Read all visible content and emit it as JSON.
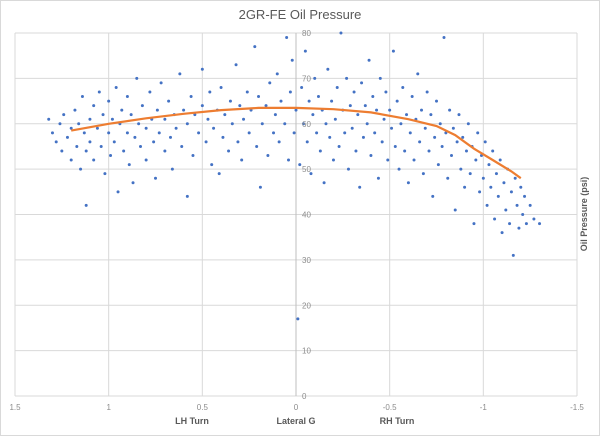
{
  "chart_data": {
    "type": "scatter",
    "title": "2GR-FE Oil Pressure",
    "xlabel": "Lateral G",
    "ylabel": "Oil Pressure (psi)",
    "x_annotations": {
      "left": "LH Turn",
      "right": "RH Turn"
    },
    "xlim": [
      1.5,
      -1.5
    ],
    "x_reversed": true,
    "ylim": [
      0,
      80
    ],
    "x_ticks": [
      "1.5",
      "1",
      "0.5",
      "0",
      "-0.5",
      "-1",
      "-1.5"
    ],
    "y_ticks": [
      "0",
      "10",
      "20",
      "30",
      "40",
      "50",
      "60",
      "70",
      "80"
    ],
    "grid": true,
    "legend": "none",
    "colors": {
      "points": "#4472c4",
      "trend": "#ed7d31",
      "grid": "#d9d9d9",
      "text": "#595959"
    },
    "points": [
      [
        1.32,
        61
      ],
      [
        1.3,
        58
      ],
      [
        1.28,
        56
      ],
      [
        1.26,
        60
      ],
      [
        1.25,
        54
      ],
      [
        1.24,
        62
      ],
      [
        1.22,
        57
      ],
      [
        1.2,
        59
      ],
      [
        1.2,
        52
      ],
      [
        1.18,
        63
      ],
      [
        1.17,
        55
      ],
      [
        1.16,
        60
      ],
      [
        1.15,
        50
      ],
      [
        1.14,
        66
      ],
      [
        1.13,
        58
      ],
      [
        1.12,
        42
      ],
      [
        1.12,
        54
      ],
      [
        1.1,
        61
      ],
      [
        1.1,
        56
      ],
      [
        1.08,
        64
      ],
      [
        1.08,
        52
      ],
      [
        1.06,
        59
      ],
      [
        1.05,
        67
      ],
      [
        1.04,
        55
      ],
      [
        1.03,
        62
      ],
      [
        1.02,
        49
      ],
      [
        1.0,
        58
      ],
      [
        1.0,
        65
      ],
      [
        0.99,
        53
      ],
      [
        0.98,
        61
      ],
      [
        0.97,
        56
      ],
      [
        0.96,
        68
      ],
      [
        0.95,
        45
      ],
      [
        0.94,
        60
      ],
      [
        0.93,
        63
      ],
      [
        0.92,
        54
      ],
      [
        0.9,
        58
      ],
      [
        0.9,
        66
      ],
      [
        0.89,
        51
      ],
      [
        0.88,
        62
      ],
      [
        0.87,
        47
      ],
      [
        0.86,
        57
      ],
      [
        0.85,
        70
      ],
      [
        0.84,
        60
      ],
      [
        0.83,
        55
      ],
      [
        0.82,
        64
      ],
      [
        0.8,
        59
      ],
      [
        0.8,
        52
      ],
      [
        0.78,
        67
      ],
      [
        0.77,
        61
      ],
      [
        0.76,
        56
      ],
      [
        0.75,
        48
      ],
      [
        0.74,
        63
      ],
      [
        0.73,
        58
      ],
      [
        0.72,
        69
      ],
      [
        0.7,
        54
      ],
      [
        0.7,
        61
      ],
      [
        0.68,
        65
      ],
      [
        0.67,
        57
      ],
      [
        0.66,
        50
      ],
      [
        0.65,
        62
      ],
      [
        0.64,
        59
      ],
      [
        0.62,
        71
      ],
      [
        0.61,
        55
      ],
      [
        0.6,
        63
      ],
      [
        0.58,
        44
      ],
      [
        0.58,
        60
      ],
      [
        0.56,
        66
      ],
      [
        0.55,
        53
      ],
      [
        0.54,
        62
      ],
      [
        0.52,
        58
      ],
      [
        0.5,
        72
      ],
      [
        0.5,
        64
      ],
      [
        0.48,
        56
      ],
      [
        0.47,
        61
      ],
      [
        0.46,
        67
      ],
      [
        0.45,
        51
      ],
      [
        0.44,
        59
      ],
      [
        0.42,
        63
      ],
      [
        0.41,
        49
      ],
      [
        0.4,
        68
      ],
      [
        0.39,
        57
      ],
      [
        0.38,
        62
      ],
      [
        0.36,
        54
      ],
      [
        0.35,
        65
      ],
      [
        0.34,
        60
      ],
      [
        0.32,
        73
      ],
      [
        0.31,
        56
      ],
      [
        0.3,
        64
      ],
      [
        0.29,
        52
      ],
      [
        0.28,
        61
      ],
      [
        0.26,
        67
      ],
      [
        0.25,
        58
      ],
      [
        0.24,
        63
      ],
      [
        0.22,
        77
      ],
      [
        0.21,
        55
      ],
      [
        0.2,
        66
      ],
      [
        0.19,
        46
      ],
      [
        0.18,
        60
      ],
      [
        0.16,
        64
      ],
      [
        0.15,
        53
      ],
      [
        0.14,
        69
      ],
      [
        0.12,
        58
      ],
      [
        0.11,
        62
      ],
      [
        0.1,
        71
      ],
      [
        0.09,
        56
      ],
      [
        0.08,
        65
      ],
      [
        0.06,
        60
      ],
      [
        0.05,
        79
      ],
      [
        0.04,
        52
      ],
      [
        0.03,
        67
      ],
      [
        0.02,
        74
      ],
      [
        0.01,
        58
      ],
      [
        0.0,
        63
      ],
      [
        -0.01,
        17
      ],
      [
        -0.02,
        51
      ],
      [
        -0.03,
        68
      ],
      [
        -0.04,
        60
      ],
      [
        -0.05,
        76
      ],
      [
        -0.06,
        56
      ],
      [
        -0.07,
        65
      ],
      [
        -0.08,
        49
      ],
      [
        -0.09,
        62
      ],
      [
        -0.1,
        70
      ],
      [
        -0.11,
        58
      ],
      [
        -0.12,
        66
      ],
      [
        -0.13,
        54
      ],
      [
        -0.14,
        63
      ],
      [
        -0.15,
        47
      ],
      [
        -0.16,
        60
      ],
      [
        -0.17,
        72
      ],
      [
        -0.18,
        57
      ],
      [
        -0.19,
        65
      ],
      [
        -0.2,
        52
      ],
      [
        -0.21,
        61
      ],
      [
        -0.22,
        68
      ],
      [
        -0.23,
        55
      ],
      [
        -0.24,
        80
      ],
      [
        -0.25,
        63
      ],
      [
        -0.26,
        58
      ],
      [
        -0.27,
        70
      ],
      [
        -0.28,
        50
      ],
      [
        -0.29,
        64
      ],
      [
        -0.3,
        59
      ],
      [
        -0.31,
        67
      ],
      [
        -0.32,
        54
      ],
      [
        -0.33,
        62
      ],
      [
        -0.34,
        46
      ],
      [
        -0.35,
        69
      ],
      [
        -0.36,
        57
      ],
      [
        -0.37,
        64
      ],
      [
        -0.38,
        60
      ],
      [
        -0.39,
        74
      ],
      [
        -0.4,
        53
      ],
      [
        -0.41,
        66
      ],
      [
        -0.42,
        58
      ],
      [
        -0.43,
        63
      ],
      [
        -0.44,
        48
      ],
      [
        -0.45,
        70
      ],
      [
        -0.46,
        56
      ],
      [
        -0.47,
        61
      ],
      [
        -0.48,
        67
      ],
      [
        -0.49,
        52
      ],
      [
        -0.5,
        63
      ],
      [
        -0.51,
        59
      ],
      [
        -0.52,
        76
      ],
      [
        -0.53,
        55
      ],
      [
        -0.54,
        65
      ],
      [
        -0.55,
        50
      ],
      [
        -0.56,
        60
      ],
      [
        -0.57,
        68
      ],
      [
        -0.58,
        54
      ],
      [
        -0.59,
        62
      ],
      [
        -0.6,
        47
      ],
      [
        -0.61,
        58
      ],
      [
        -0.62,
        66
      ],
      [
        -0.63,
        52
      ],
      [
        -0.64,
        61
      ],
      [
        -0.65,
        71
      ],
      [
        -0.66,
        56
      ],
      [
        -0.67,
        63
      ],
      [
        -0.68,
        49
      ],
      [
        -0.69,
        59
      ],
      [
        -0.7,
        67
      ],
      [
        -0.71,
        54
      ],
      [
        -0.72,
        62
      ],
      [
        -0.73,
        44
      ],
      [
        -0.74,
        57
      ],
      [
        -0.75,
        65
      ],
      [
        -0.76,
        51
      ],
      [
        -0.77,
        60
      ],
      [
        -0.78,
        55
      ],
      [
        -0.79,
        79
      ],
      [
        -0.8,
        58
      ],
      [
        -0.81,
        48
      ],
      [
        -0.82,
        63
      ],
      [
        -0.83,
        53
      ],
      [
        -0.84,
        59
      ],
      [
        -0.85,
        41
      ],
      [
        -0.86,
        56
      ],
      [
        -0.87,
        62
      ],
      [
        -0.88,
        50
      ],
      [
        -0.89,
        57
      ],
      [
        -0.9,
        46
      ],
      [
        -0.91,
        54
      ],
      [
        -0.92,
        60
      ],
      [
        -0.93,
        49
      ],
      [
        -0.94,
        55
      ],
      [
        -0.95,
        38
      ],
      [
        -0.96,
        52
      ],
      [
        -0.97,
        58
      ],
      [
        -0.98,
        45
      ],
      [
        -0.99,
        53
      ],
      [
        -1.0,
        48
      ],
      [
        -1.01,
        56
      ],
      [
        -1.02,
        42
      ],
      [
        -1.03,
        51
      ],
      [
        -1.04,
        46
      ],
      [
        -1.05,
        54
      ],
      [
        -1.06,
        39
      ],
      [
        -1.07,
        49
      ],
      [
        -1.08,
        44
      ],
      [
        -1.09,
        52
      ],
      [
        -1.1,
        36
      ],
      [
        -1.11,
        47
      ],
      [
        -1.12,
        41
      ],
      [
        -1.13,
        50
      ],
      [
        -1.14,
        38
      ],
      [
        -1.15,
        45
      ],
      [
        -1.16,
        31
      ],
      [
        -1.17,
        48
      ],
      [
        -1.18,
        42
      ],
      [
        -1.19,
        37
      ],
      [
        -1.2,
        46
      ],
      [
        -1.21,
        40
      ],
      [
        -1.22,
        44
      ],
      [
        -1.23,
        38
      ],
      [
        -1.25,
        42
      ],
      [
        -1.27,
        39
      ],
      [
        -1.3,
        38
      ]
    ],
    "trendline": [
      [
        1.2,
        58.5
      ],
      [
        1.0,
        60
      ],
      [
        0.8,
        61.2
      ],
      [
        0.6,
        62.2
      ],
      [
        0.4,
        63
      ],
      [
        0.2,
        63.5
      ],
      [
        0,
        63.5
      ],
      [
        -0.2,
        63.2
      ],
      [
        -0.4,
        62.5
      ],
      [
        -0.6,
        61
      ],
      [
        -0.75,
        59.5
      ],
      [
        -0.85,
        57.5
      ],
      [
        -0.95,
        54.5
      ],
      [
        -1.05,
        52
      ],
      [
        -1.15,
        49.5
      ],
      [
        -1.2,
        48
      ]
    ]
  }
}
